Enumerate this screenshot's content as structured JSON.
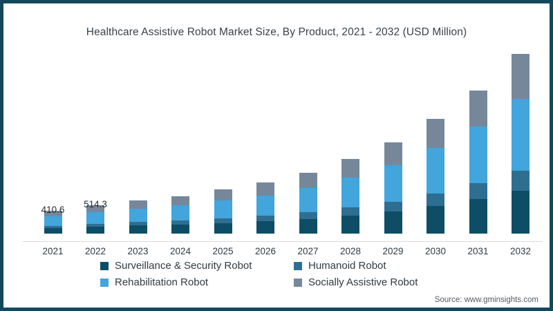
{
  "title": "Healthcare Assistive Robot Market Size, By Product, 2021 - 2032 (USD Million)",
  "source_note": "Source: www.gminsights.com",
  "colors": {
    "frame_border": "#15485c",
    "axis_line": "#d9d9d9",
    "surveillance_security": "#0d4d66",
    "humanoid": "#2e6f91",
    "rehabilitation": "#42a5dc",
    "socially_assistive": "#76879a"
  },
  "chart_data": {
    "type": "bar",
    "stacked": true,
    "title": "Healthcare Assistive Robot Market Size, By Product, 2021 - 2032 (USD Million)",
    "units": "USD Million",
    "xlabel": "",
    "ylabel": "",
    "grid": false,
    "legend_position": "bottom",
    "ylim": [
      0,
      3400
    ],
    "categories": [
      "2021",
      "2022",
      "2023",
      "2024",
      "2025",
      "2026",
      "2027",
      "2028",
      "2029",
      "2030",
      "2031",
      "2032"
    ],
    "series": [
      {
        "name": "Surveillance & Security Robot",
        "color": "#0d4d66",
        "values": [
          98.5,
          123.4,
          145,
          163,
          191,
          221,
          265,
          324,
          396,
          497,
          622,
          780
        ]
      },
      {
        "name": "Humanoid Robot",
        "color": "#2e6f91",
        "values": [
          45.2,
          56.6,
          67,
          75,
          87,
          101,
          122,
          149,
          182,
          228,
          285,
          358
        ]
      },
      {
        "name": "Rehabilitation Robot",
        "color": "#42a5dc",
        "values": [
          164.2,
          205.7,
          242,
          272,
          318,
          368,
          442,
          540,
          660,
          828,
          1036,
          1300
        ]
      },
      {
        "name": "Socially Assistive Robot",
        "color": "#76879a",
        "values": [
          102.7,
          128.6,
          151,
          170,
          199,
          230,
          276,
          337,
          412,
          517,
          647,
          812
        ]
      }
    ],
    "totals": [
      410.6,
      514.3,
      605,
      680,
      795,
      920,
      1105,
      1350,
      1650,
      2070,
      2590,
      3250
    ],
    "data_labels": {
      "2021": "410.6",
      "2022": "514.3"
    }
  },
  "legend": {
    "items": [
      {
        "label": "Surveillance & Security Robot",
        "color": "#0d4d66"
      },
      {
        "label": "Humanoid Robot",
        "color": "#2e6f91"
      },
      {
        "label": "Rehabilitation Robot",
        "color": "#42a5dc"
      },
      {
        "label": "Socially Assistive Robot",
        "color": "#76879a"
      }
    ]
  }
}
